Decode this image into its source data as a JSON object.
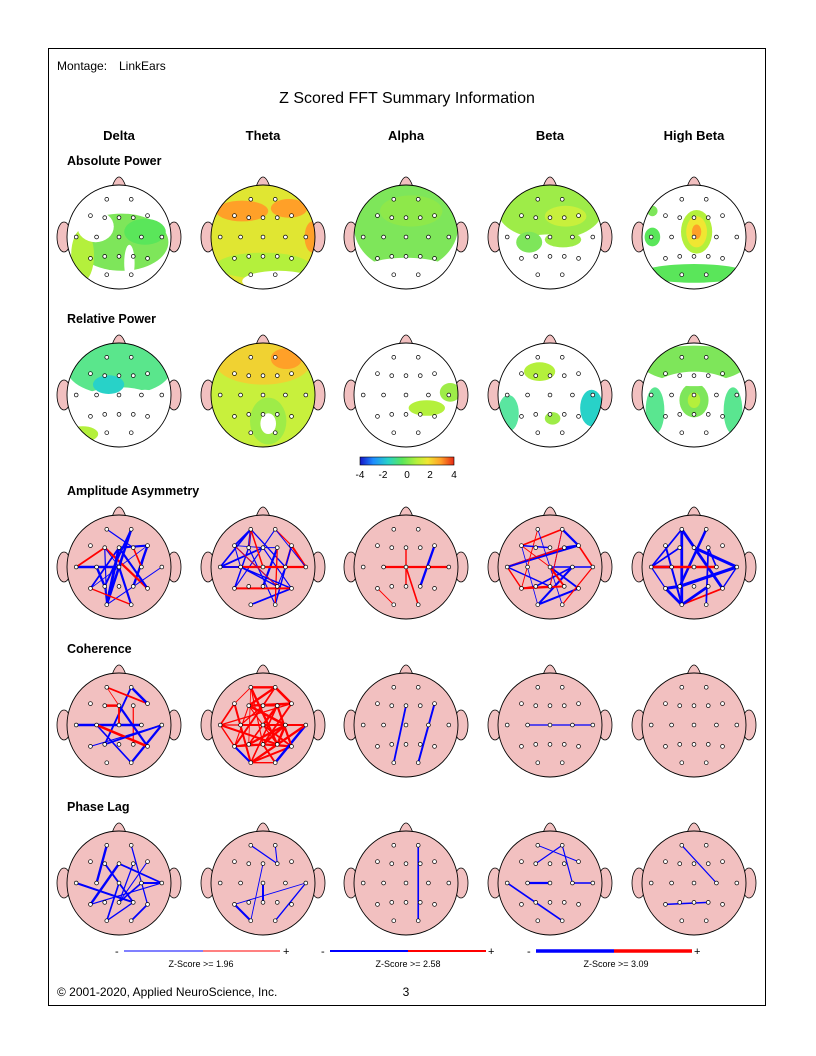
{
  "header": {
    "montage_label": "Montage:",
    "montage_value": "LinkEars",
    "title": "Z Scored FFT Summary Information"
  },
  "bands": [
    "Delta",
    "Theta",
    "Alpha",
    "Beta",
    "High Beta"
  ],
  "sections": {
    "absolute_power": "Absolute Power",
    "relative_power": "Relative Power",
    "amplitude_asymmetry": "Amplitude Asymmetry",
    "coherence": "Coherence",
    "phase_lag": "Phase Lag"
  },
  "colorbar": {
    "ticks": [
      "-4",
      "-2",
      "0",
      "2",
      "4"
    ],
    "stops": [
      "#1414c8",
      "#1e8cff",
      "#28d2c8",
      "#5ae65a",
      "#b4f03c",
      "#f0e632",
      "#ffa028",
      "#e62814"
    ]
  },
  "legends": [
    {
      "minus": "-",
      "plus": "+",
      "label": "Z-Score >= 1.96"
    },
    {
      "minus": "-",
      "plus": "+",
      "label": "Z-Score >= 2.58"
    },
    {
      "minus": "-",
      "plus": "+",
      "label": "Z-Score >= 3.09"
    }
  ],
  "colors": {
    "head_pink": "#f2c0c0",
    "ear_pink": "#f2c0c0",
    "line_positive": "#ff0000",
    "line_negative": "#0000ff",
    "map_white": "#ffffff"
  },
  "footer": {
    "copyright": "© 2001-2020, Applied NeuroScience, Inc.",
    "page_number": "3"
  }
}
